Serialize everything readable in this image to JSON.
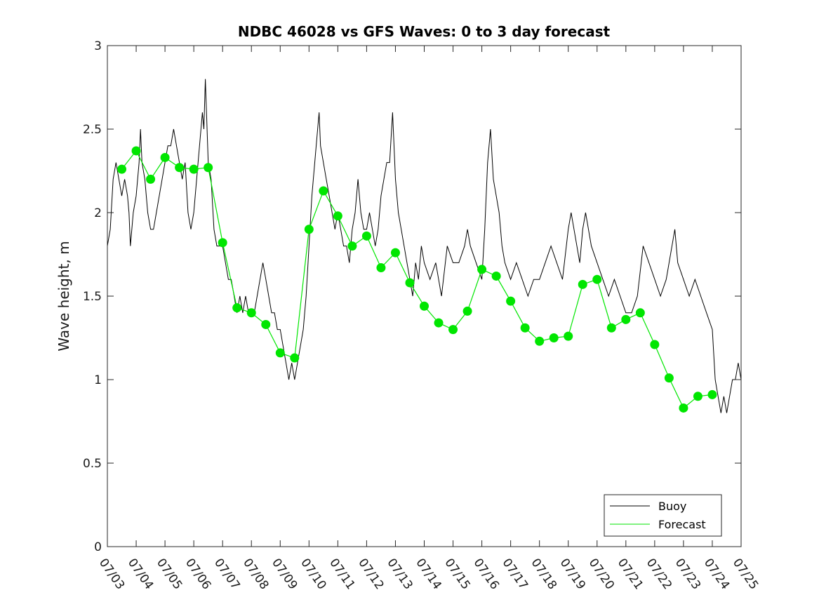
{
  "chart_data": {
    "type": "line",
    "title": "NDBC 46028 vs GFS Waves: 0 to 3 day forecast",
    "xlabel": "",
    "ylabel": "Wave height, m",
    "xlim": [
      "07/03",
      "07/25"
    ],
    "ylim": [
      0,
      3
    ],
    "x_ticks": [
      "07/03",
      "07/04",
      "07/05",
      "07/06",
      "07/07",
      "07/08",
      "07/09",
      "07/10",
      "07/11",
      "07/12",
      "07/13",
      "07/14",
      "07/15",
      "07/16",
      "07/17",
      "07/18",
      "07/19",
      "07/20",
      "07/21",
      "07/22",
      "07/23",
      "07/24",
      "07/25"
    ],
    "y_ticks": [
      "0",
      "0.5",
      "1",
      "1.5",
      "2",
      "2.5",
      "3"
    ],
    "grid": false,
    "legend_position": "bottom-right",
    "legend": [
      {
        "label": "Buoy",
        "color": "#000000"
      },
      {
        "label": "Forecast",
        "color": "#00e600"
      }
    ],
    "series": [
      {
        "name": "Buoy",
        "color": "#000000",
        "points": [
          [
            0,
            1.8
          ],
          [
            0.1,
            1.9
          ],
          [
            0.2,
            2.2
          ],
          [
            0.3,
            2.3
          ],
          [
            0.5,
            2.1
          ],
          [
            0.6,
            2.2
          ],
          [
            0.7,
            2.1
          ],
          [
            0.75,
            2.0
          ],
          [
            0.8,
            1.8
          ],
          [
            0.9,
            2.0
          ],
          [
            1,
            2.1
          ],
          [
            1.1,
            2.3
          ],
          [
            1.15,
            2.5
          ],
          [
            1.2,
            2.3
          ],
          [
            1.3,
            2.2
          ],
          [
            1.4,
            2.0
          ],
          [
            1.5,
            1.9
          ],
          [
            1.6,
            1.9
          ],
          [
            1.7,
            2.0
          ],
          [
            1.8,
            2.1
          ],
          [
            1.9,
            2.2
          ],
          [
            2,
            2.3
          ],
          [
            2.1,
            2.4
          ],
          [
            2.2,
            2.4
          ],
          [
            2.3,
            2.5
          ],
          [
            2.4,
            2.4
          ],
          [
            2.5,
            2.3
          ],
          [
            2.6,
            2.2
          ],
          [
            2.7,
            2.3
          ],
          [
            2.8,
            2.0
          ],
          [
            2.9,
            1.9
          ],
          [
            3,
            2.0
          ],
          [
            3.1,
            2.2
          ],
          [
            3.2,
            2.4
          ],
          [
            3.3,
            2.6
          ],
          [
            3.35,
            2.5
          ],
          [
            3.4,
            2.8
          ],
          [
            3.5,
            2.3
          ],
          [
            3.6,
            2.2
          ],
          [
            3.7,
            1.9
          ],
          [
            3.8,
            1.8
          ],
          [
            3.9,
            1.8
          ],
          [
            4,
            1.8
          ],
          [
            4.1,
            1.7
          ],
          [
            4.2,
            1.6
          ],
          [
            4.3,
            1.6
          ],
          [
            4.4,
            1.5
          ],
          [
            4.5,
            1.4
          ],
          [
            4.6,
            1.5
          ],
          [
            4.7,
            1.4
          ],
          [
            4.8,
            1.5
          ],
          [
            4.9,
            1.4
          ],
          [
            5,
            1.4
          ],
          [
            5.1,
            1.4
          ],
          [
            5.2,
            1.5
          ],
          [
            5.3,
            1.6
          ],
          [
            5.4,
            1.7
          ],
          [
            5.5,
            1.6
          ],
          [
            5.6,
            1.5
          ],
          [
            5.7,
            1.4
          ],
          [
            5.8,
            1.4
          ],
          [
            5.9,
            1.3
          ],
          [
            6,
            1.3
          ],
          [
            6.1,
            1.2
          ],
          [
            6.2,
            1.1
          ],
          [
            6.3,
            1.0
          ],
          [
            6.4,
            1.1
          ],
          [
            6.5,
            1.0
          ],
          [
            6.6,
            1.1
          ],
          [
            6.7,
            1.2
          ],
          [
            6.8,
            1.3
          ],
          [
            6.9,
            1.5
          ],
          [
            7,
            1.8
          ],
          [
            7.1,
            2.1
          ],
          [
            7.2,
            2.3
          ],
          [
            7.3,
            2.5
          ],
          [
            7.35,
            2.6
          ],
          [
            7.4,
            2.4
          ],
          [
            7.5,
            2.3
          ],
          [
            7.6,
            2.2
          ],
          [
            7.7,
            2.1
          ],
          [
            7.8,
            2.0
          ],
          [
            7.9,
            1.9
          ],
          [
            8,
            2.0
          ],
          [
            8.1,
            1.9
          ],
          [
            8.2,
            1.8
          ],
          [
            8.3,
            1.8
          ],
          [
            8.4,
            1.7
          ],
          [
            8.5,
            1.9
          ],
          [
            8.6,
            2.0
          ],
          [
            8.7,
            2.2
          ],
          [
            8.8,
            2.0
          ],
          [
            8.9,
            1.9
          ],
          [
            9,
            1.9
          ],
          [
            9.1,
            2.0
          ],
          [
            9.2,
            1.9
          ],
          [
            9.3,
            1.8
          ],
          [
            9.4,
            1.9
          ],
          [
            9.5,
            2.1
          ],
          [
            9.6,
            2.2
          ],
          [
            9.7,
            2.3
          ],
          [
            9.8,
            2.3
          ],
          [
            9.9,
            2.6
          ],
          [
            10,
            2.2
          ],
          [
            10.1,
            2.0
          ],
          [
            10.2,
            1.9
          ],
          [
            10.3,
            1.8
          ],
          [
            10.4,
            1.7
          ],
          [
            10.5,
            1.6
          ],
          [
            10.6,
            1.5
          ],
          [
            10.7,
            1.7
          ],
          [
            10.8,
            1.6
          ],
          [
            10.9,
            1.8
          ],
          [
            11,
            1.7
          ],
          [
            11.2,
            1.6
          ],
          [
            11.4,
            1.7
          ],
          [
            11.5,
            1.6
          ],
          [
            11.6,
            1.5
          ],
          [
            11.8,
            1.8
          ],
          [
            12,
            1.7
          ],
          [
            12.2,
            1.7
          ],
          [
            12.4,
            1.8
          ],
          [
            12.5,
            1.9
          ],
          [
            12.6,
            1.8
          ],
          [
            12.8,
            1.7
          ],
          [
            13,
            1.6
          ],
          [
            13.1,
            1.9
          ],
          [
            13.2,
            2.3
          ],
          [
            13.3,
            2.5
          ],
          [
            13.4,
            2.2
          ],
          [
            13.5,
            2.1
          ],
          [
            13.6,
            2.0
          ],
          [
            13.7,
            1.8
          ],
          [
            13.8,
            1.7
          ],
          [
            14,
            1.6
          ],
          [
            14.2,
            1.7
          ],
          [
            14.4,
            1.6
          ],
          [
            14.6,
            1.5
          ],
          [
            14.8,
            1.6
          ],
          [
            15,
            1.6
          ],
          [
            15.2,
            1.7
          ],
          [
            15.4,
            1.8
          ],
          [
            15.6,
            1.7
          ],
          [
            15.8,
            1.6
          ],
          [
            16,
            1.9
          ],
          [
            16.1,
            2.0
          ],
          [
            16.2,
            1.9
          ],
          [
            16.3,
            1.8
          ],
          [
            16.4,
            1.7
          ],
          [
            16.5,
            1.9
          ],
          [
            16.6,
            2.0
          ],
          [
            16.8,
            1.8
          ],
          [
            17,
            1.7
          ],
          [
            17.2,
            1.6
          ],
          [
            17.4,
            1.5
          ],
          [
            17.6,
            1.6
          ],
          [
            17.8,
            1.5
          ],
          [
            18,
            1.4
          ],
          [
            18.2,
            1.4
          ],
          [
            18.4,
            1.5
          ],
          [
            18.6,
            1.8
          ],
          [
            18.8,
            1.7
          ],
          [
            19,
            1.6
          ],
          [
            19.2,
            1.5
          ],
          [
            19.4,
            1.6
          ],
          [
            19.6,
            1.8
          ],
          [
            19.7,
            1.9
          ],
          [
            19.8,
            1.7
          ],
          [
            20,
            1.6
          ],
          [
            20.2,
            1.5
          ],
          [
            20.4,
            1.6
          ],
          [
            20.6,
            1.5
          ],
          [
            20.8,
            1.4
          ],
          [
            21,
            1.3
          ],
          [
            21.1,
            1.0
          ],
          [
            21.2,
            0.9
          ],
          [
            21.3,
            0.8
          ],
          [
            21.4,
            0.9
          ],
          [
            21.5,
            0.8
          ],
          [
            21.6,
            0.9
          ],
          [
            21.7,
            1.0
          ],
          [
            21.8,
            1.0
          ],
          [
            21.9,
            1.1
          ],
          [
            22,
            1.0
          ]
        ]
      },
      {
        "name": "Forecast",
        "color": "#00e600",
        "points": [
          [
            0.5,
            2.26
          ],
          [
            1,
            2.37
          ],
          [
            1.5,
            2.2
          ],
          [
            2,
            2.33
          ],
          [
            2.5,
            2.27
          ],
          [
            3,
            2.26
          ],
          [
            3.5,
            2.27
          ],
          [
            4,
            1.82
          ],
          [
            4.5,
            1.43
          ],
          [
            5,
            1.4
          ],
          [
            5.5,
            1.33
          ],
          [
            6,
            1.16
          ],
          [
            6.5,
            1.13
          ],
          [
            7,
            1.9
          ],
          [
            7.5,
            2.13
          ],
          [
            8,
            1.98
          ],
          [
            8.5,
            1.8
          ],
          [
            9,
            1.86
          ],
          [
            9.5,
            1.67
          ],
          [
            10,
            1.76
          ],
          [
            10.5,
            1.58
          ],
          [
            11,
            1.44
          ],
          [
            11.5,
            1.34
          ],
          [
            12,
            1.3
          ],
          [
            12.5,
            1.41
          ],
          [
            13,
            1.66
          ],
          [
            13.5,
            1.62
          ],
          [
            14,
            1.47
          ],
          [
            14.5,
            1.31
          ],
          [
            15,
            1.23
          ],
          [
            15.5,
            1.25
          ],
          [
            16,
            1.26
          ],
          [
            16.5,
            1.57
          ],
          [
            17,
            1.6
          ],
          [
            17.5,
            1.31
          ],
          [
            18,
            1.36
          ],
          [
            18.5,
            1.4
          ],
          [
            19,
            1.21
          ],
          [
            19.5,
            1.01
          ],
          [
            20,
            0.83
          ],
          [
            20.5,
            0.9
          ],
          [
            21,
            0.91
          ]
        ]
      }
    ]
  }
}
